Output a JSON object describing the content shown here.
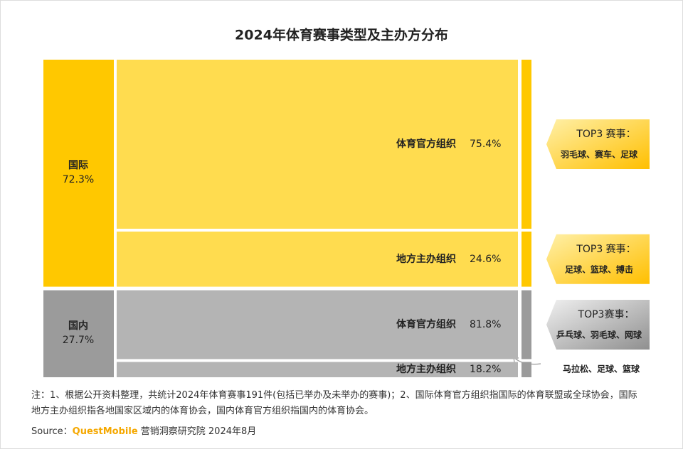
{
  "chart_data": {
    "type": "mekko",
    "title": "2024年体育赛事类型及主办方分布",
    "groups": [
      "国际",
      "国内"
    ],
    "group_values": [
      72.3,
      27.7
    ],
    "group_value_labels": [
      "72.3%",
      "27.7%"
    ],
    "group_colors": [
      "#ffc800",
      "#9b9b9b"
    ],
    "segment_colors": [
      "#ffdc4f",
      "#b4b4b4"
    ],
    "series": [
      {
        "name": "体育官方组织",
        "values": [
          75.4,
          81.8
        ],
        "value_labels": [
          "75.4%",
          "81.8%"
        ]
      },
      {
        "name": "地方主办组织",
        "values": [
          24.6,
          18.2
        ],
        "value_labels": [
          "24.6%",
          "18.2%"
        ]
      }
    ],
    "annotations": [
      {
        "title": "TOP3 赛事：",
        "text": "羽毛球、赛车、足球"
      },
      {
        "title": "TOP3 赛事：",
        "text": "足球、篮球、搏击"
      },
      {
        "title": "TOP3赛事：",
        "text": "乒乓球、羽毛球、网球"
      },
      {
        "text": "马拉松、足球、篮球"
      }
    ],
    "note": "注：1、根据公开资料整理，共统计2024年体育赛事191件(包括已举办及未举办的赛事)；2、国际体育官方组织指国际的体育联盟或全球协会，国际地方主办组织指各地国家区域内的体育协会，国内体育官方组织指国内的体育协会。",
    "source_label": "Source：",
    "source_brand": "QuestMobile",
    "source_text": "营销洞察研究院 2024年8月"
  }
}
